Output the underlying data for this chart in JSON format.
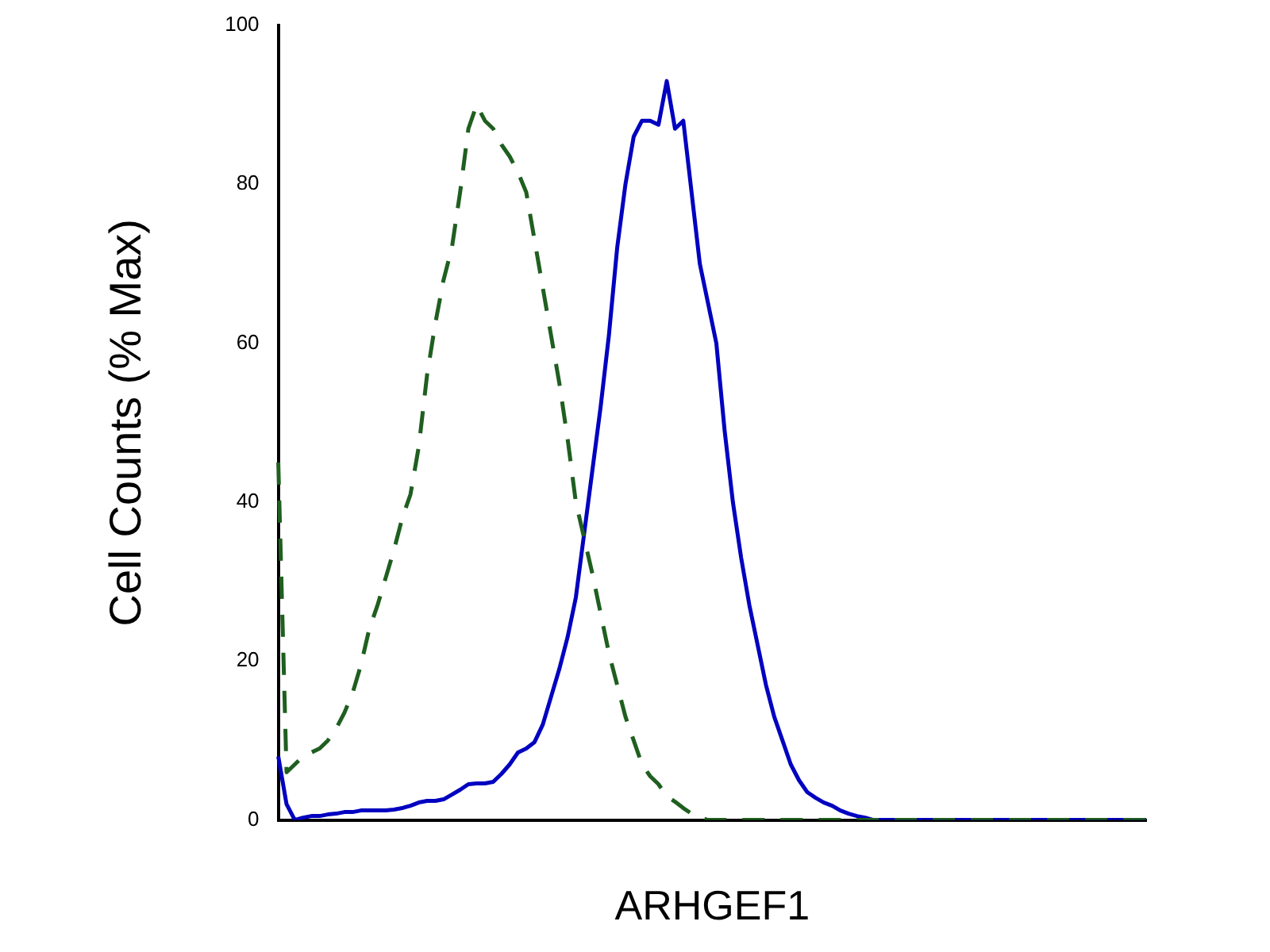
{
  "chart_data": {
    "type": "line",
    "xlabel": "ARHGEF1",
    "ylabel": "Cell Counts (% Max)",
    "categories": [
      null,
      null,
      null,
      null,
      null,
      null,
      null,
      null,
      null,
      null,
      null,
      null,
      null,
      null,
      null,
      null,
      null,
      null,
      null,
      null,
      null,
      null,
      null,
      null,
      null,
      null,
      null,
      null,
      null,
      null,
      null,
      null,
      null,
      null,
      null,
      null,
      null,
      null,
      null,
      null,
      null,
      null,
      null,
      null,
      null,
      null,
      null,
      null,
      null,
      null,
      null,
      null,
      null,
      null,
      null,
      null,
      null,
      null,
      null,
      null,
      null,
      null,
      null,
      null,
      null,
      null,
      null,
      null,
      null,
      null,
      null,
      null,
      null,
      null,
      null,
      null,
      null,
      null,
      null,
      null,
      null,
      null,
      null,
      null,
      null,
      null,
      null,
      null,
      null,
      null,
      null,
      null,
      null,
      null,
      null,
      null,
      null,
      null,
      null,
      null,
      null,
      null,
      null,
      null,
      null,
      null
    ],
    "series": [
      {
        "color": "#1f5f1f",
        "line_style": "dashed",
        "values": [
          45,
          6,
          7,
          8,
          8.5,
          9,
          10,
          11.5,
          13.5,
          16,
          19.5,
          24,
          27,
          30.5,
          34,
          38,
          41,
          47,
          56,
          62.5,
          68,
          72,
          79,
          87,
          90,
          88,
          87,
          85,
          83.5,
          81.5,
          79,
          73,
          67,
          61,
          55,
          48,
          40,
          35.5,
          31,
          26,
          21,
          17,
          13,
          10,
          7,
          5.5,
          4.5,
          3,
          2.3,
          1.5,
          0.8,
          0.3,
          0,
          0,
          0,
          0,
          0,
          0,
          0,
          0,
          0,
          0,
          0,
          0,
          0,
          0,
          0,
          0,
          0,
          0,
          0,
          0,
          0,
          0,
          0,
          0,
          0,
          0,
          0,
          0,
          0,
          0,
          0,
          0,
          0,
          0,
          0,
          0,
          0,
          0,
          0,
          0,
          0,
          0,
          0,
          0,
          0,
          0,
          0,
          0,
          0,
          0,
          0,
          0,
          0,
          0
        ]
      },
      {
        "color": "#0000c0",
        "line_style": "solid",
        "values": [
          8,
          2,
          0,
          0.3,
          0.5,
          0.5,
          0.7,
          0.8,
          1,
          1,
          1.2,
          1.2,
          1.2,
          1.2,
          1.3,
          1.5,
          1.8,
          2.2,
          2.4,
          2.4,
          2.6,
          3.2,
          3.8,
          4.5,
          4.6,
          4.6,
          4.8,
          5.8,
          7,
          8.5,
          9,
          9.8,
          12,
          15.5,
          19,
          23,
          28,
          36,
          44,
          52,
          61,
          72,
          80,
          86,
          88,
          88,
          87.5,
          93,
          87,
          88,
          79,
          70,
          65,
          60,
          49,
          40,
          33,
          27,
          22,
          17,
          13,
          10,
          7,
          5,
          3.5,
          2.8,
          2.2,
          1.8,
          1.2,
          0.8,
          0.5,
          0.3,
          0,
          0,
          0,
          0,
          0,
          0,
          0,
          0,
          0,
          0,
          0,
          0,
          0,
          0,
          0,
          0,
          0,
          0,
          0,
          0,
          0,
          0,
          0,
          0,
          0,
          0,
          0,
          0,
          0,
          0,
          0,
          0,
          0,
          0
        ]
      }
    ],
    "ylim": [
      0,
      100
    ],
    "yticks": [
      0,
      20,
      40,
      60,
      80,
      100
    ],
    "tick_labels": "y",
    "legend": false,
    "grid": false,
    "marker": "none"
  }
}
